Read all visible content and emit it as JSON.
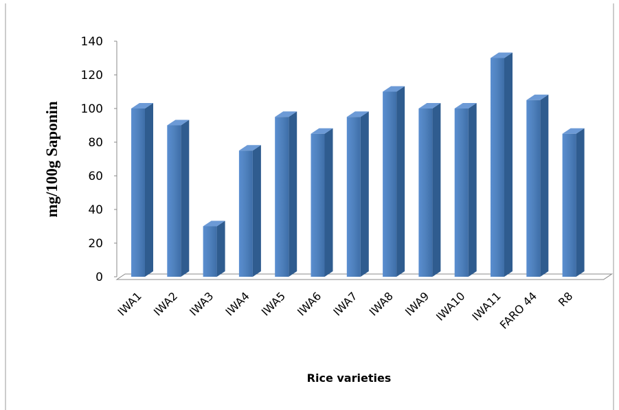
{
  "chart_data": {
    "type": "bar",
    "title": "",
    "xlabel": "Rice varieties",
    "ylabel": "mg/100g Saponin",
    "ylim": [
      0,
      140
    ],
    "yticks": [
      0,
      20,
      40,
      60,
      80,
      100,
      120,
      140
    ],
    "grid": false,
    "legend": "none",
    "style": "3d-column",
    "categories": [
      "IWA1",
      "IWA2",
      "IWA3",
      "IWA4",
      "IWA5",
      "IWA6",
      "IWA7",
      "IWA8",
      "IWA9",
      "IWA10",
      "IWA11",
      "FARO 44",
      "R8"
    ],
    "series": [
      {
        "values": [
          100,
          90,
          30,
          75,
          95,
          85,
          95,
          110,
          100,
          100,
          130,
          105,
          85
        ],
        "color": "#4F81BD"
      }
    ]
  }
}
